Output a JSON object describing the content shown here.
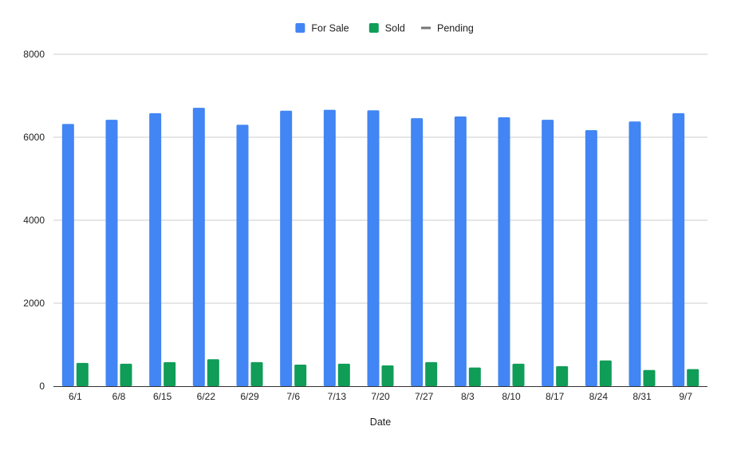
{
  "chart_data": {
    "type": "bar",
    "title": "",
    "xlabel": "Date",
    "ylabel": "",
    "ylim": [
      0,
      8000
    ],
    "yticks": [
      0,
      2000,
      4000,
      6000,
      8000
    ],
    "grid": true,
    "legend_position": "top-center",
    "categories": [
      "6/1",
      "6/8",
      "6/15",
      "6/22",
      "6/29",
      "7/6",
      "7/13",
      "7/20",
      "7/27",
      "8/3",
      "8/10",
      "8/17",
      "8/24",
      "8/31",
      "9/7"
    ],
    "series": [
      {
        "name": "For Sale",
        "type": "bar",
        "color": "#4285f4",
        "values": [
          6320,
          6420,
          6580,
          6710,
          6300,
          6640,
          6660,
          6650,
          6460,
          6500,
          6480,
          6420,
          6170,
          6380,
          6580
        ]
      },
      {
        "name": "Sold",
        "type": "bar",
        "color": "#0f9d58",
        "values": [
          560,
          540,
          580,
          650,
          580,
          520,
          540,
          500,
          580,
          450,
          540,
          480,
          620,
          390,
          410
        ]
      },
      {
        "name": "Pending",
        "type": "line",
        "color": "#757575",
        "values": [
          null,
          null,
          null,
          null,
          null,
          null,
          null,
          null,
          null,
          null,
          null,
          null,
          null,
          null,
          null
        ]
      }
    ]
  }
}
